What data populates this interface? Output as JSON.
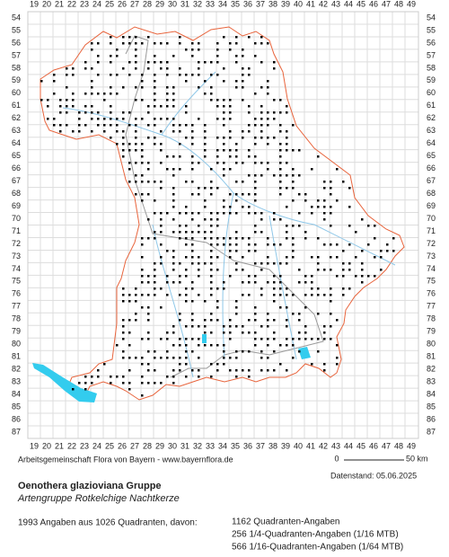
{
  "grid": {
    "columns": [
      19,
      20,
      21,
      22,
      23,
      24,
      25,
      26,
      27,
      28,
      29,
      30,
      31,
      32,
      33,
      34,
      35,
      36,
      37,
      38,
      39,
      40,
      41,
      42,
      43,
      44,
      45,
      46,
      47,
      48,
      49
    ],
    "rows": [
      54,
      55,
      56,
      57,
      58,
      59,
      60,
      61,
      62,
      63,
      64,
      65,
      66,
      67,
      68,
      69,
      70,
      71,
      72,
      73,
      74,
      75,
      76,
      77,
      78,
      79,
      80,
      81,
      82,
      83,
      84,
      85,
      86,
      87
    ]
  },
  "credit": "Arbeitsgemeinschaft Flora von Bayern - www.bayernflora.de",
  "scale": {
    "start": "0",
    "end": "50 km"
  },
  "date": "Datenstand: 05.06.2025",
  "title": "Oenothera glazioviana Gruppe",
  "subtitle": "Artengruppe Rotkelchige Nachtkerze",
  "summary": "1993 Angaben aus 1026 Quadranten, davon:",
  "breakdown": [
    "1162 Quadranten-Angaben",
    "256 1/4-Quadranten-Angaben (1/16 MTB)",
    "566 1/16-Quadranten-Angaben (1/64 MTB)"
  ]
}
